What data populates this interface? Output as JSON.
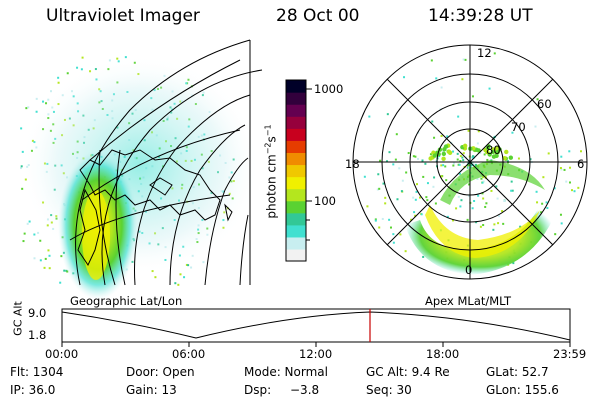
{
  "header": {
    "title": "Ultraviolet Imager",
    "date": "28 Oct 00",
    "time": "14:39:28 UT"
  },
  "left_panel": {
    "label": "Geographic Lat/Lon"
  },
  "right_panel": {
    "label": "Apex MLat/MLT",
    "mlt_labels": {
      "top": "12",
      "left": "18",
      "right": "6",
      "bottom": "0"
    },
    "lat_labels": [
      "60",
      "70",
      "80"
    ]
  },
  "colorbar": {
    "unit_label": "photon cm",
    "unit_exp1": "−2",
    "unit_mid": "s",
    "unit_exp2": "−1",
    "tick_labels": [
      "1000",
      "100"
    ],
    "colors": [
      "#f2f2f2",
      "#c8eef0",
      "#40e0d0",
      "#32c896",
      "#5ad232",
      "#b4e61e",
      "#f0f000",
      "#f0c800",
      "#f08c00",
      "#e63c00",
      "#c8001e",
      "#96003c",
      "#640050",
      "#32003c",
      "#000028"
    ]
  },
  "timeline": {
    "axis_label": "GC Alt",
    "y_ticks": [
      "9.0",
      "1.8"
    ],
    "x_ticks": [
      "00:00",
      "06:00",
      "12:00",
      "18:00",
      "23:59"
    ]
  },
  "info": {
    "flt": "Flt: 1304",
    "ip": "IP: 36.0",
    "door": "Door: Open",
    "gain": "Gain: 13",
    "mode": "Mode: Normal",
    "dsp_label": "Dsp:",
    "dsp_value": "−3.8",
    "gc_alt": "GC Alt: 9.4 Re",
    "seq": "Seq: 30",
    "glat": "GLat:  52.7",
    "glon": "GLon: 155.6"
  }
}
